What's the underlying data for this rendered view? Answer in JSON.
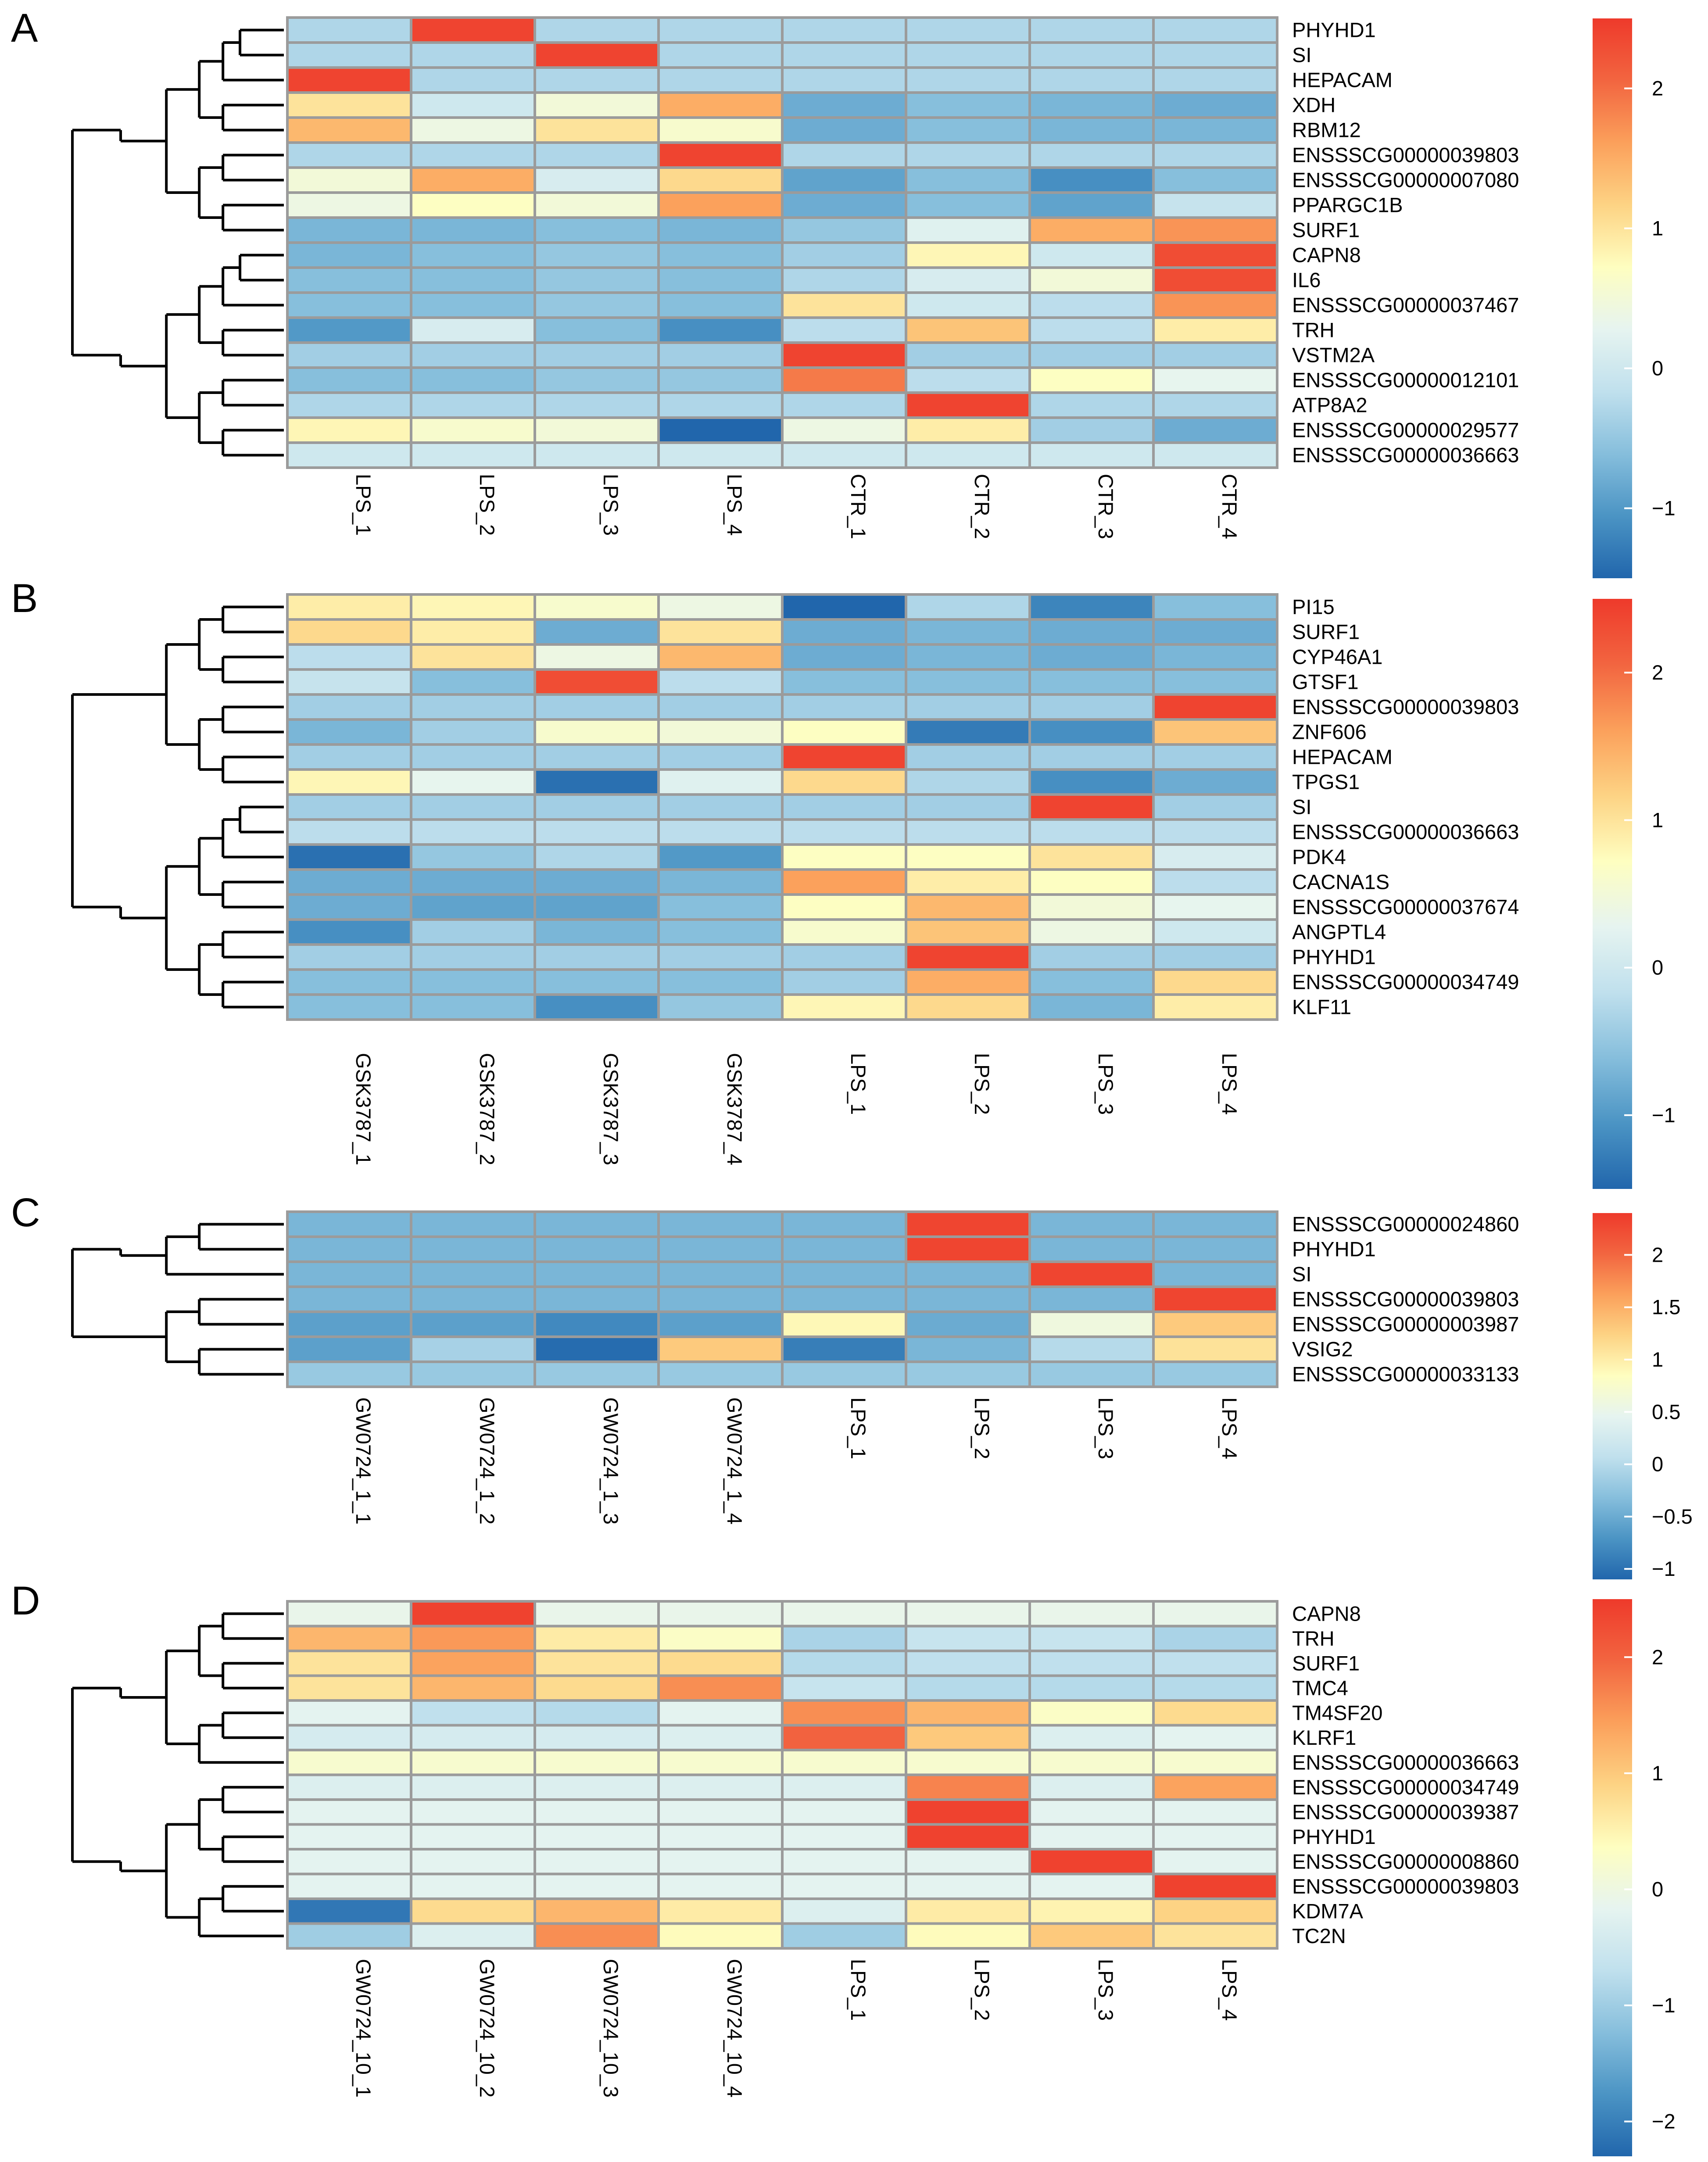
{
  "palette": [
    "#2166ac",
    "#4b94c4",
    "#86bedc",
    "#c0e0ed",
    "#e6f4f0",
    "#fefec0",
    "#fdd384",
    "#fba05b",
    "#f26540",
    "#ee3a2b"
  ],
  "chart_data": [
    {
      "type": "heatmap",
      "panel": "A",
      "rows": [
        "PHYHD1",
        "SI",
        "HEPACAM",
        "XDH",
        "RBM12",
        "ENSSSCG00000039803",
        "ENSSSCG00000007080",
        "PPARGC1B",
        "SURF1",
        "CAPN8",
        "IL6",
        "ENSSSCG00000037467",
        "TRH",
        "VSTM2A",
        "ENSSSCG00000012101",
        "ATP8A2",
        "ENSSSCG00000029577",
        "ENSSSCG00000036663"
      ],
      "columns": [
        "LPS_1",
        "LPS_2",
        "LPS_3",
        "LPS_4",
        "CTR_1",
        "CTR_2",
        "CTR_3",
        "CTR_4"
      ],
      "values": [
        [
          -0.3,
          2.4,
          -0.3,
          -0.3,
          -0.3,
          -0.3,
          -0.3,
          -0.3
        ],
        [
          -0.3,
          -0.3,
          2.4,
          -0.3,
          -0.3,
          -0.3,
          -0.3,
          -0.3
        ],
        [
          2.4,
          -0.3,
          -0.3,
          -0.3,
          -0.3,
          -0.3,
          -0.3,
          -0.3
        ],
        [
          1.0,
          0.0,
          0.5,
          1.5,
          -0.8,
          -0.6,
          -0.7,
          -0.8
        ],
        [
          1.4,
          0.4,
          1.0,
          0.6,
          -0.8,
          -0.6,
          -0.7,
          -0.7
        ],
        [
          -0.3,
          -0.3,
          -0.3,
          2.4,
          -0.3,
          -0.3,
          -0.3,
          -0.3
        ],
        [
          0.5,
          1.5,
          0.1,
          1.1,
          -0.9,
          -0.6,
          -1.1,
          -0.6
        ],
        [
          0.4,
          0.7,
          0.5,
          1.6,
          -0.8,
          -0.6,
          -0.9,
          -0.1
        ],
        [
          -0.7,
          -0.7,
          -0.6,
          -0.7,
          -0.5,
          0.2,
          1.5,
          1.7
        ],
        [
          -0.7,
          -0.6,
          -0.5,
          -0.6,
          -0.4,
          0.8,
          0.0,
          2.3
        ],
        [
          -0.6,
          -0.6,
          -0.5,
          -0.6,
          -0.3,
          0.1,
          0.5,
          2.3
        ],
        [
          -0.6,
          -0.6,
          -0.5,
          -0.6,
          1.0,
          0.0,
          -0.2,
          1.7
        ],
        [
          -1.0,
          0.1,
          -0.6,
          -1.1,
          -0.2,
          1.3,
          -0.2,
          0.9
        ],
        [
          -0.4,
          -0.4,
          -0.4,
          -0.4,
          2.4,
          -0.4,
          -0.4,
          -0.4
        ],
        [
          -0.6,
          -0.6,
          -0.5,
          -0.5,
          1.9,
          -0.2,
          0.7,
          0.3
        ],
        [
          -0.3,
          -0.3,
          -0.3,
          -0.3,
          -0.3,
          2.4,
          -0.3,
          -0.3
        ],
        [
          0.8,
          0.6,
          0.5,
          -1.5,
          0.4,
          0.9,
          -0.4,
          -0.8
        ],
        [
          0.0,
          0.0,
          0.0,
          0.0,
          0.0,
          0.0,
          0.0,
          0.0
        ]
      ],
      "legend_ticks": [
        -1,
        0,
        1,
        2
      ],
      "legend_range": [
        -1.5,
        2.5
      ]
    },
    {
      "type": "heatmap",
      "panel": "B",
      "rows": [
        "PI15",
        "SURF1",
        "CYP46A1",
        "GTSF1",
        "ENSSSCG00000039803",
        "ZNF606",
        "HEPACAM",
        "TPGS1",
        "SI",
        "ENSSSCG00000036663",
        "PDK4",
        "CACNA1S",
        "ENSSSCG00000037674",
        "ANGPTL4",
        "PHYHD1",
        "ENSSSCG00000034749",
        "KLF11"
      ],
      "columns": [
        "GSK3787_1",
        "GSK3787_2",
        "GSK3787_3",
        "GSK3787_4",
        "LPS_1",
        "LPS_2",
        "LPS_3",
        "LPS_4"
      ],
      "values": [
        [
          0.9,
          0.8,
          0.6,
          0.4,
          -1.5,
          -0.3,
          -1.2,
          -0.6
        ],
        [
          1.1,
          0.9,
          -0.8,
          1.0,
          -0.8,
          -0.7,
          -0.8,
          -0.8
        ],
        [
          -0.2,
          1.0,
          0.4,
          1.4,
          -0.8,
          -0.7,
          -0.8,
          -0.7
        ],
        [
          -0.1,
          -0.6,
          2.3,
          -0.2,
          -0.6,
          -0.6,
          -0.6,
          -0.6
        ],
        [
          -0.4,
          -0.4,
          -0.4,
          -0.4,
          -0.4,
          -0.4,
          -0.4,
          2.4
        ],
        [
          -0.7,
          -0.4,
          0.6,
          0.5,
          0.7,
          -1.3,
          -1.1,
          1.3
        ],
        [
          -0.4,
          -0.4,
          -0.4,
          -0.4,
          2.4,
          -0.4,
          -0.4,
          -0.4
        ],
        [
          0.8,
          0.3,
          -1.4,
          0.2,
          1.1,
          -0.3,
          -1.1,
          -0.8
        ],
        [
          -0.4,
          -0.4,
          -0.4,
          -0.4,
          -0.4,
          -0.4,
          2.4,
          -0.4
        ],
        [
          -0.2,
          -0.2,
          -0.2,
          -0.2,
          -0.2,
          -0.2,
          -0.2,
          -0.2
        ],
        [
          -1.4,
          -0.5,
          -0.3,
          -1.0,
          0.7,
          0.7,
          1.0,
          0.1
        ],
        [
          -0.8,
          -0.8,
          -0.8,
          -0.7,
          1.6,
          0.9,
          0.7,
          -0.2
        ],
        [
          -0.8,
          -0.9,
          -0.9,
          -0.6,
          0.7,
          1.4,
          0.5,
          0.3
        ],
        [
          -1.1,
          -0.4,
          -0.7,
          -0.6,
          0.6,
          1.3,
          0.4,
          0.0
        ],
        [
          -0.4,
          -0.4,
          -0.4,
          -0.4,
          -0.4,
          2.4,
          -0.4,
          -0.4
        ],
        [
          -0.6,
          -0.6,
          -0.6,
          -0.6,
          -0.4,
          1.5,
          -0.6,
          1.1
        ],
        [
          -0.6,
          -0.6,
          -1.1,
          -0.5,
          0.8,
          1.1,
          -0.7,
          0.9
        ]
      ],
      "legend_ticks": [
        -1,
        0,
        1,
        2
      ],
      "legend_range": [
        -1.5,
        2.5
      ]
    },
    {
      "type": "heatmap",
      "panel": "C",
      "rows": [
        "ENSSSCG00000024860",
        "PHYHD1",
        "SI",
        "ENSSSCG00000039803",
        "ENSSSCG00000003987",
        "VSIG2",
        "ENSSSCG00000033133"
      ],
      "columns": [
        "GW0724_1_1",
        "GW0724_1_2",
        "GW0724_1_3",
        "GW0724_1_4",
        "LPS_1",
        "LPS_2",
        "LPS_3",
        "LPS_4"
      ],
      "values": [
        [
          -0.4,
          -0.4,
          -0.4,
          -0.4,
          -0.4,
          2.3,
          -0.4,
          -0.4
        ],
        [
          -0.4,
          -0.4,
          -0.4,
          -0.4,
          -0.4,
          2.3,
          -0.4,
          -0.4
        ],
        [
          -0.4,
          -0.4,
          -0.4,
          -0.4,
          -0.4,
          -0.4,
          2.3,
          -0.4
        ],
        [
          -0.4,
          -0.4,
          -0.4,
          -0.4,
          -0.4,
          -0.4,
          -0.4,
          2.3
        ],
        [
          -0.6,
          -0.6,
          -0.8,
          -0.6,
          0.9,
          -0.5,
          0.6,
          1.3
        ],
        [
          -0.6,
          -0.1,
          -1.05,
          1.3,
          -0.9,
          -0.4,
          0.0,
          1.1
        ],
        [
          -0.2,
          -0.2,
          -0.2,
          -0.2,
          -0.2,
          -0.2,
          -0.2,
          -0.2
        ]
      ],
      "legend_ticks": [
        -1,
        -0.5,
        0,
        0.5,
        1,
        1.5,
        2
      ],
      "legend_range": [
        -1.1,
        2.4
      ]
    },
    {
      "type": "heatmap",
      "panel": "D",
      "rows": [
        "CAPN8",
        "TRH",
        "SURF1",
        "TMC4",
        "TM4SF20",
        "KLRF1",
        "ENSSSCG00000036663",
        "ENSSSCG00000034749",
        "ENSSSCG00000039387",
        "PHYHD1",
        "ENSSSCG00000008860",
        "ENSSSCG00000039803",
        "KDM7A",
        "TC2N"
      ],
      "columns": [
        "GW0724_10_1",
        "GW0724_10_2",
        "GW0724_10_3",
        "GW0724_10_4",
        "LPS_1",
        "LPS_2",
        "LPS_3",
        "LPS_4"
      ],
      "values": [
        [
          -0.1,
          2.4,
          -0.1,
          -0.1,
          -0.1,
          -0.1,
          -0.1,
          -0.1
        ],
        [
          1.2,
          1.5,
          0.6,
          0.3,
          -0.9,
          -0.6,
          -0.6,
          -0.9
        ],
        [
          0.7,
          1.4,
          0.7,
          0.8,
          -0.8,
          -0.7,
          -0.7,
          -0.7
        ],
        [
          0.7,
          1.2,
          0.8,
          1.6,
          -0.6,
          -0.8,
          -0.8,
          -0.8
        ],
        [
          -0.2,
          -0.7,
          -0.8,
          -0.2,
          1.6,
          1.2,
          0.3,
          0.8
        ],
        [
          -0.4,
          -0.4,
          -0.4,
          -0.3,
          2.0,
          1.0,
          -0.3,
          -0.2
        ],
        [
          0.2,
          0.2,
          0.2,
          0.2,
          0.2,
          0.2,
          0.2,
          0.2
        ],
        [
          -0.3,
          -0.3,
          -0.3,
          -0.3,
          -0.3,
          1.7,
          -0.3,
          1.4
        ],
        [
          -0.2,
          -0.2,
          -0.2,
          -0.2,
          -0.2,
          2.4,
          -0.2,
          -0.2
        ],
        [
          -0.2,
          -0.2,
          -0.2,
          -0.2,
          -0.2,
          2.4,
          -0.2,
          -0.2
        ],
        [
          -0.2,
          -0.2,
          -0.2,
          -0.2,
          -0.2,
          -0.2,
          2.4,
          -0.2
        ],
        [
          -0.2,
          -0.2,
          -0.2,
          -0.2,
          -0.2,
          -0.2,
          -0.2,
          2.4
        ],
        [
          -2.1,
          0.8,
          1.2,
          0.6,
          -0.3,
          0.6,
          0.5,
          0.9
        ],
        [
          -1.0,
          -0.3,
          1.6,
          0.4,
          -1.0,
          0.4,
          1.0,
          0.7
        ]
      ],
      "legend_ticks": [
        -2,
        -1,
        0,
        1,
        2
      ],
      "legend_range": [
        -2.3,
        2.5
      ]
    }
  ]
}
